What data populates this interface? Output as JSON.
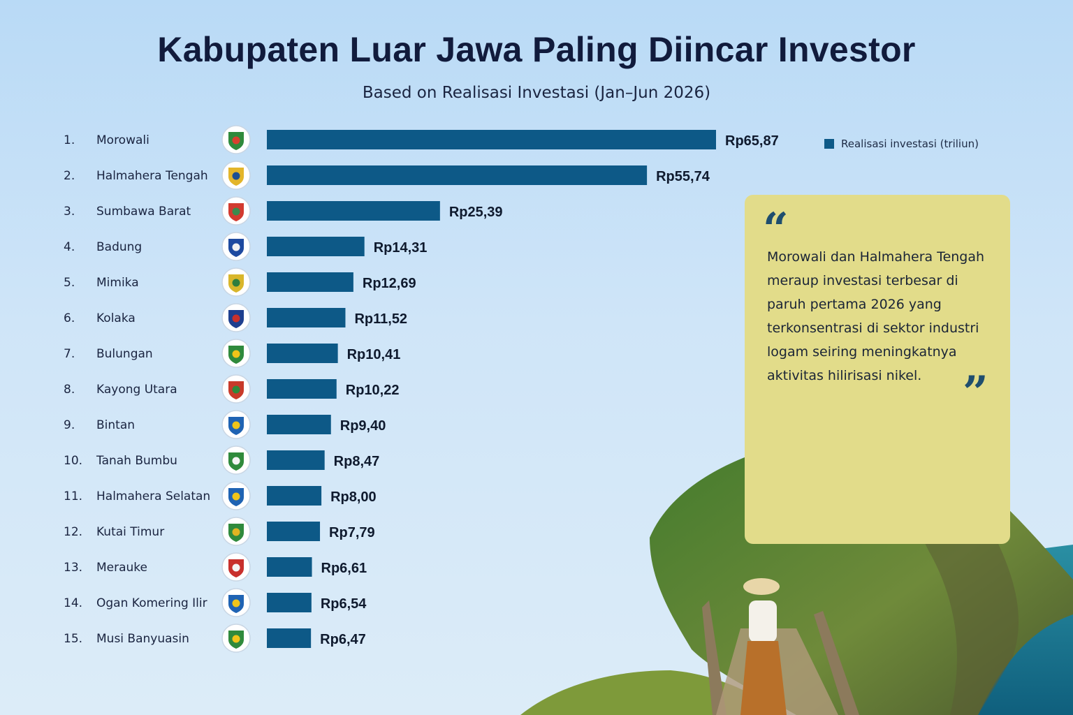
{
  "chart_data": {
    "type": "bar",
    "orientation": "horizontal",
    "title": "Kabupaten Luar Jawa Paling Diincar Investor",
    "subtitle": "Based on Realisasi Investasi (Jan–Jun 2026)",
    "legend": {
      "label": "Realisasi investasi (triliun)",
      "placement": "top-right"
    },
    "categories": [
      "Morowali",
      "Halmahera Tengah",
      "Sumbawa Barat",
      "Badung",
      "Mimika",
      "Kolaka",
      "Bulungan",
      "Kayong Utara",
      "Bintan",
      "Tanah Bumbu",
      "Halmahera Selatan",
      "Kutai Timur",
      "Merauke",
      "Ogan Komering Ilir",
      "Musi Banyuasin"
    ],
    "ranks": [
      "1.",
      "2.",
      "3.",
      "4.",
      "5.",
      "6.",
      "7.",
      "8.",
      "9.",
      "10.",
      "11.",
      "12.",
      "13.",
      "14.",
      "15."
    ],
    "values": [
      65.87,
      55.74,
      25.39,
      14.31,
      12.69,
      11.52,
      10.41,
      10.22,
      9.4,
      8.47,
      8.0,
      7.79,
      6.61,
      6.54,
      6.47
    ],
    "value_labels": [
      "Rp65,87",
      "Rp55,74",
      "Rp25,39",
      "Rp14,31",
      "Rp12,69",
      "Rp11,52",
      "Rp10,41",
      "Rp10,22",
      "Rp9,40",
      "Rp8,47",
      "Rp8,00",
      "Rp7,79",
      "Rp6,61",
      "Rp6,54",
      "Rp6,47"
    ],
    "xlim": [
      0,
      65.87
    ],
    "grid": false
  },
  "emblem_icons": [
    "morowali-emblem-icon",
    "halmahera-tengah-emblem-icon",
    "sumbawa-barat-emblem-icon",
    "badung-emblem-icon",
    "mimika-emblem-icon",
    "kolaka-emblem-icon",
    "bulungan-emblem-icon",
    "kayong-utara-emblem-icon",
    "bintan-emblem-icon",
    "tanah-bumbu-emblem-icon",
    "halmahera-selatan-emblem-icon",
    "kutai-timur-emblem-icon",
    "merauke-emblem-icon",
    "ogan-komering-ilir-emblem-icon",
    "musi-banyuasin-emblem-icon"
  ],
  "emblem_colors": [
    [
      "#2f8a3c",
      "#d8402f"
    ],
    [
      "#e3b52a",
      "#1c4f93"
    ],
    [
      "#d23a2f",
      "#3b8a4d"
    ],
    [
      "#1e4aa0",
      "#f2f2f2"
    ],
    [
      "#d9b62b",
      "#2f7d3e"
    ],
    [
      "#1e3f8f",
      "#c9302c"
    ],
    [
      "#2f8a3c",
      "#f0c419"
    ],
    [
      "#c83a2a",
      "#2f8a3c"
    ],
    [
      "#1f63b3",
      "#f0c419"
    ],
    [
      "#2f8a3c",
      "#f4f4f4"
    ],
    [
      "#1f63b3",
      "#f0c419"
    ],
    [
      "#2f8a3c",
      "#e0b422"
    ],
    [
      "#c8302c",
      "#f4f4f4"
    ],
    [
      "#1f63b3",
      "#f0c419"
    ],
    [
      "#2f8a3c",
      "#f0c419"
    ]
  ],
  "quote": {
    "text": "Morowali dan Halmahera Tengah meraup investasi terbesar di paruh pertama 2026 yang terkonsentrasi di sektor industri logam seiring meningkatnya aktivitas hilirisasi nikel.",
    "open_mark": "“",
    "close_mark": "”"
  },
  "colors": {
    "bar": "#0d5987",
    "quote_bg": "#e2dc8a",
    "quote_mark": "#1f4e6e",
    "title": "#111b3c"
  }
}
